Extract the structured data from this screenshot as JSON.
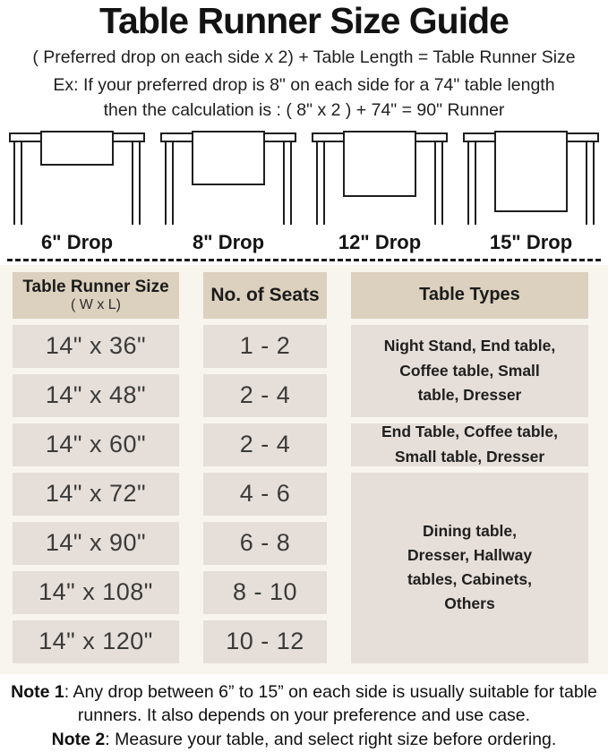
{
  "title": "Table Runner Size Guide",
  "formula": {
    "line1": "( Preferred drop on each side x 2) + Table Length = Table Runner Size",
    "line2": "Ex: If your preferred drop is 8\" on each side for a 74\" table length",
    "line3": "then the calculation is : ( 8\" x 2 ) + 74\" = 90\" Runner"
  },
  "figures": [
    {
      "label": "6\" Drop",
      "drop_inches": 6
    },
    {
      "label": "8\" Drop",
      "drop_inches": 8
    },
    {
      "label": "12\" Drop",
      "drop_inches": 12
    },
    {
      "label": "15\" Drop",
      "drop_inches": 15
    }
  ],
  "size_table": {
    "headers": {
      "size_title": "Table Runner Size",
      "size_sub": "( W x L)",
      "seats": "No. of Seats",
      "types": "Table Types"
    },
    "rows": [
      {
        "size": "14\" x 36\"",
        "seats": "1 - 2"
      },
      {
        "size": "14\" x 48\"",
        "seats": "2 - 4"
      },
      {
        "size": "14\" x 60\"",
        "seats": "2 - 4"
      },
      {
        "size": "14\" x 72\"",
        "seats": "4 - 6"
      },
      {
        "size": "14\" x 90\"",
        "seats": "6 - 8"
      },
      {
        "size": "14\" x 108\"",
        "seats": "8 - 10"
      },
      {
        "size": "14\" x 120\"",
        "seats": "10 - 12"
      }
    ],
    "type_groups": [
      {
        "text": "Night Stand, End table, Coffee table, Small table, Dresser",
        "rows_spanned": 2
      },
      {
        "text": "End Table, Coffee table, Small table, Dresser",
        "rows_spanned": 1
      },
      {
        "text": "Dining table, Dresser, Hallway tables, Cabinets, Others",
        "rows_spanned": 4
      }
    ]
  },
  "notes": [
    {
      "label": "Note 1",
      "text": ": Any drop between 6” to 15” on each side is usually suitable for table runners. It also depends on your preference and use case."
    },
    {
      "label": "Note 2",
      "text": ": Measure your table, and select right size before ordering."
    }
  ],
  "colors": {
    "header_cell_bg": "#dcd1be",
    "body_cell_bg": "#e6dfd9",
    "section_bg": "#f8f4ee",
    "line_art": "#1e1e1e",
    "text": "#1b1b1b"
  }
}
